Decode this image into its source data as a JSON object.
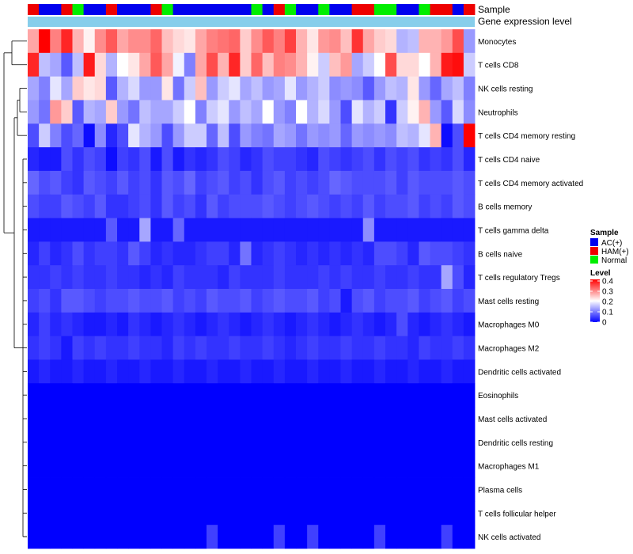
{
  "chart_data": {
    "type": "heatmap",
    "title": "",
    "annotation_labels": {
      "sample": "Sample",
      "expression": "Gene expression level"
    },
    "rows": [
      "Monocytes",
      "T cells CD8",
      "NK cells resting",
      "Neutrophils",
      "T cells CD4 memory resting",
      "T cells CD4 naive",
      "T cells CD4 memory activated",
      "B cells memory",
      "T cells gamma delta",
      "B cells naive",
      "T cells regulatory  Tregs",
      "Mast cells resting",
      "Macrophages M0",
      "Macrophages M2",
      "Dendritic cells activated",
      "Eosinophils",
      "Mast cells activated",
      "Dendritic cells resting",
      "Macrophages M1",
      "Plasma cells",
      "T cells follicular helper",
      "NK cells activated"
    ],
    "sample_groups": [
      "HAM(+)",
      "AC(+)",
      "AC(+)",
      "HAM(+)",
      "Normal",
      "AC(+)",
      "AC(+)",
      "HAM(+)",
      "AC(+)",
      "AC(+)",
      "AC(+)",
      "HAM(+)",
      "Normal",
      "AC(+)",
      "AC(+)",
      "AC(+)",
      "AC(+)",
      "AC(+)",
      "AC(+)",
      "AC(+)",
      "Normal",
      "AC(+)",
      "HAM(+)",
      "Normal",
      "AC(+)",
      "AC(+)",
      "Normal",
      "AC(+)",
      "AC(+)",
      "HAM(+)",
      "HAM(+)",
      "Normal",
      "Normal",
      "AC(+)",
      "AC(+)",
      "Normal",
      "HAM(+)",
      "HAM(+)",
      "AC(+)",
      "HAM(+)"
    ],
    "values": [
      [
        0.27,
        0.4,
        0.3,
        0.37,
        0.26,
        0.21,
        0.29,
        0.33,
        0.27,
        0.29,
        0.29,
        0.32,
        0.25,
        0.23,
        0.22,
        0.27,
        0.3,
        0.31,
        0.32,
        0.24,
        0.29,
        0.33,
        0.3,
        0.35,
        0.26,
        0.22,
        0.28,
        0.29,
        0.25,
        0.36,
        0.27,
        0.24,
        0.23,
        0.14,
        0.15,
        0.26,
        0.26,
        0.28,
        0.34,
        0.12
      ],
      [
        0.37,
        0.15,
        0.13,
        0.07,
        0.15,
        0.38,
        0.23,
        0.14,
        0.2,
        0.22,
        0.27,
        0.33,
        0.27,
        0.19,
        0.1,
        0.27,
        0.34,
        0.26,
        0.37,
        0.24,
        0.32,
        0.25,
        0.3,
        0.29,
        0.26,
        0.21,
        0.16,
        0.25,
        0.28,
        0.13,
        0.16,
        0.2,
        0.34,
        0.23,
        0.23,
        0.2,
        0.26,
        0.38,
        0.39,
        0.16
      ],
      [
        0.13,
        0.1,
        0.18,
        0.13,
        0.24,
        0.22,
        0.23,
        0.07,
        0.14,
        0.17,
        0.12,
        0.12,
        0.22,
        0.09,
        0.16,
        0.25,
        0.12,
        0.16,
        0.18,
        0.13,
        0.15,
        0.12,
        0.13,
        0.18,
        0.12,
        0.14,
        0.16,
        0.11,
        0.12,
        0.11,
        0.07,
        0.12,
        0.15,
        0.14,
        0.22,
        0.12,
        0.08,
        0.13,
        0.15,
        0.1
      ],
      [
        0.12,
        0.09,
        0.28,
        0.24,
        0.07,
        0.14,
        0.13,
        0.24,
        0.12,
        0.09,
        0.15,
        0.13,
        0.13,
        0.16,
        0.2,
        0.1,
        0.16,
        0.18,
        0.12,
        0.15,
        0.13,
        0.2,
        0.12,
        0.1,
        0.2,
        0.14,
        0.17,
        0.12,
        0.06,
        0.18,
        0.14,
        0.16,
        0.04,
        0.16,
        0.21,
        0.26,
        0.12,
        0.07,
        0.17,
        0.11
      ],
      [
        0.06,
        0.16,
        0.1,
        0.06,
        0.08,
        0.01,
        0.11,
        0.03,
        0.06,
        0.18,
        0.14,
        0.12,
        0.06,
        0.12,
        0.16,
        0.16,
        0.08,
        0.15,
        0.06,
        0.12,
        0.1,
        0.09,
        0.13,
        0.12,
        0.09,
        0.12,
        0.11,
        0.12,
        0.08,
        0.12,
        0.11,
        0.12,
        0.11,
        0.15,
        0.14,
        0.18,
        0.26,
        0.01,
        0.06,
        0.4
      ],
      [
        0.03,
        0.02,
        0.02,
        0.06,
        0.04,
        0.06,
        0.05,
        0.01,
        0.05,
        0.04,
        0.06,
        0.02,
        0.06,
        0.02,
        0.04,
        0.03,
        0.04,
        0.06,
        0.05,
        0.03,
        0.04,
        0.06,
        0.05,
        0.05,
        0.04,
        0.03,
        0.06,
        0.05,
        0.04,
        0.05,
        0.06,
        0.04,
        0.06,
        0.05,
        0.06,
        0.04,
        0.05,
        0.04,
        0.06,
        0.03
      ],
      [
        0.08,
        0.06,
        0.07,
        0.05,
        0.04,
        0.07,
        0.06,
        0.05,
        0.07,
        0.05,
        0.06,
        0.04,
        0.07,
        0.06,
        0.08,
        0.05,
        0.06,
        0.07,
        0.05,
        0.06,
        0.04,
        0.06,
        0.07,
        0.05,
        0.06,
        0.05,
        0.06,
        0.08,
        0.07,
        0.06,
        0.06,
        0.06,
        0.07,
        0.05,
        0.07,
        0.06,
        0.06,
        0.06,
        0.07,
        0.06
      ],
      [
        0.06,
        0.05,
        0.05,
        0.07,
        0.06,
        0.05,
        0.07,
        0.04,
        0.04,
        0.05,
        0.06,
        0.04,
        0.07,
        0.05,
        0.06,
        0.04,
        0.07,
        0.05,
        0.06,
        0.06,
        0.06,
        0.07,
        0.06,
        0.05,
        0.06,
        0.07,
        0.06,
        0.05,
        0.06,
        0.05,
        0.07,
        0.05,
        0.06,
        0.06,
        0.07,
        0.05,
        0.06,
        0.05,
        0.07,
        0.06
      ],
      [
        0.02,
        0.02,
        0.02,
        0.02,
        0.02,
        0.02,
        0.02,
        0.07,
        0.02,
        0.02,
        0.13,
        0.02,
        0.02,
        0.08,
        0.02,
        0.02,
        0.02,
        0.02,
        0.02,
        0.02,
        0.02,
        0.02,
        0.02,
        0.02,
        0.02,
        0.02,
        0.02,
        0.02,
        0.02,
        0.02,
        0.11,
        0.02,
        0.02,
        0.02,
        0.02,
        0.02,
        0.02,
        0.02,
        0.02,
        0.02
      ],
      [
        0.03,
        0.05,
        0.03,
        0.04,
        0.06,
        0.04,
        0.05,
        0.05,
        0.04,
        0.07,
        0.05,
        0.03,
        0.04,
        0.03,
        0.03,
        0.04,
        0.05,
        0.05,
        0.03,
        0.09,
        0.03,
        0.04,
        0.05,
        0.04,
        0.03,
        0.04,
        0.03,
        0.04,
        0.03,
        0.04,
        0.03,
        0.06,
        0.06,
        0.05,
        0.03,
        0.07,
        0.06,
        0.06,
        0.05,
        0.04
      ],
      [
        0.04,
        0.04,
        0.05,
        0.04,
        0.05,
        0.04,
        0.04,
        0.05,
        0.04,
        0.04,
        0.03,
        0.04,
        0.03,
        0.05,
        0.04,
        0.04,
        0.04,
        0.03,
        0.05,
        0.04,
        0.04,
        0.04,
        0.05,
        0.04,
        0.04,
        0.04,
        0.05,
        0.04,
        0.05,
        0.04,
        0.04,
        0.05,
        0.04,
        0.04,
        0.05,
        0.04,
        0.04,
        0.13,
        0.06,
        0.03
      ],
      [
        0.05,
        0.06,
        0.04,
        0.07,
        0.07,
        0.06,
        0.05,
        0.06,
        0.06,
        0.07,
        0.06,
        0.06,
        0.07,
        0.05,
        0.06,
        0.05,
        0.07,
        0.06,
        0.06,
        0.07,
        0.05,
        0.06,
        0.07,
        0.06,
        0.06,
        0.07,
        0.05,
        0.06,
        0.02,
        0.06,
        0.07,
        0.05,
        0.06,
        0.06,
        0.07,
        0.05,
        0.06,
        0.07,
        0.05,
        0.06
      ],
      [
        0.03,
        0.05,
        0.03,
        0.04,
        0.03,
        0.02,
        0.02,
        0.03,
        0.02,
        0.04,
        0.03,
        0.02,
        0.03,
        0.04,
        0.03,
        0.02,
        0.03,
        0.04,
        0.03,
        0.02,
        0.03,
        0.04,
        0.03,
        0.02,
        0.03,
        0.04,
        0.03,
        0.02,
        0.03,
        0.04,
        0.03,
        0.02,
        0.03,
        0.06,
        0.03,
        0.02,
        0.03,
        0.04,
        0.03,
        0.02
      ],
      [
        0.04,
        0.05,
        0.04,
        0.02,
        0.05,
        0.04,
        0.05,
        0.04,
        0.04,
        0.05,
        0.04,
        0.04,
        0.03,
        0.05,
        0.04,
        0.05,
        0.04,
        0.04,
        0.05,
        0.04,
        0.04,
        0.05,
        0.04,
        0.03,
        0.04,
        0.05,
        0.04,
        0.04,
        0.05,
        0.04,
        0.04,
        0.05,
        0.04,
        0.04,
        0.03,
        0.05,
        0.04,
        0.04,
        0.05,
        0.04
      ],
      [
        0.02,
        0.03,
        0.02,
        0.02,
        0.03,
        0.02,
        0.02,
        0.03,
        0.02,
        0.02,
        0.03,
        0.02,
        0.02,
        0.03,
        0.02,
        0.02,
        0.03,
        0.02,
        0.02,
        0.03,
        0.02,
        0.02,
        0.03,
        0.02,
        0.02,
        0.03,
        0.02,
        0.02,
        0.03,
        0.02,
        0.02,
        0.03,
        0.02,
        0.02,
        0.03,
        0.02,
        0.02,
        0.03,
        0.02,
        0.02
      ],
      [
        0,
        0,
        0,
        0,
        0,
        0,
        0,
        0,
        0,
        0,
        0,
        0,
        0,
        0,
        0,
        0,
        0,
        0,
        0,
        0,
        0,
        0,
        0,
        0,
        0,
        0,
        0,
        0,
        0,
        0,
        0,
        0,
        0,
        0,
        0,
        0,
        0,
        0,
        0,
        0
      ],
      [
        0,
        0,
        0,
        0,
        0,
        0,
        0,
        0,
        0,
        0,
        0,
        0,
        0,
        0,
        0,
        0,
        0,
        0,
        0,
        0,
        0,
        0,
        0,
        0,
        0,
        0,
        0,
        0,
        0,
        0,
        0,
        0,
        0,
        0,
        0,
        0,
        0,
        0,
        0,
        0
      ],
      [
        0,
        0,
        0,
        0,
        0,
        0,
        0,
        0,
        0,
        0,
        0,
        0,
        0,
        0,
        0,
        0,
        0,
        0,
        0,
        0,
        0,
        0,
        0,
        0,
        0,
        0,
        0,
        0,
        0,
        0,
        0,
        0,
        0,
        0,
        0,
        0,
        0,
        0,
        0,
        0
      ],
      [
        0,
        0,
        0,
        0,
        0,
        0,
        0,
        0,
        0,
        0,
        0,
        0,
        0,
        0,
        0,
        0,
        0,
        0,
        0,
        0,
        0,
        0,
        0,
        0,
        0,
        0,
        0,
        0,
        0,
        0,
        0,
        0,
        0,
        0,
        0,
        0,
        0,
        0,
        0,
        0
      ],
      [
        0,
        0,
        0,
        0,
        0,
        0,
        0,
        0,
        0,
        0,
        0,
        0,
        0,
        0,
        0,
        0,
        0,
        0,
        0,
        0,
        0,
        0,
        0,
        0,
        0,
        0,
        0,
        0,
        0,
        0,
        0,
        0,
        0,
        0,
        0,
        0,
        0,
        0,
        0,
        0
      ],
      [
        0,
        0,
        0,
        0,
        0,
        0,
        0,
        0,
        0,
        0,
        0,
        0,
        0,
        0,
        0,
        0,
        0,
        0,
        0,
        0,
        0,
        0,
        0,
        0,
        0,
        0,
        0,
        0,
        0,
        0,
        0,
        0,
        0,
        0,
        0,
        0,
        0,
        0,
        0,
        0
      ],
      [
        0,
        0,
        0,
        0,
        0,
        0,
        0,
        0,
        0,
        0,
        0,
        0,
        0,
        0,
        0,
        0,
        0.05,
        0,
        0,
        0,
        0,
        0,
        0.05,
        0,
        0,
        0.05,
        0,
        0,
        0,
        0,
        0,
        0.05,
        0,
        0,
        0,
        0,
        0,
        0.05,
        0,
        0
      ]
    ],
    "color_scale": {
      "min": 0,
      "max": 0.4,
      "colors": [
        "#0000ff",
        "#ffffff",
        "#ff0000"
      ]
    },
    "legend": {
      "sample_title": "Sample",
      "groups": [
        {
          "label": "AC(+)",
          "color": "#0000ee"
        },
        {
          "label": "HAM(+)",
          "color": "#ee0000"
        },
        {
          "label": "Normal",
          "color": "#00ee00"
        }
      ],
      "level_title": "Level",
      "level_ticks": [
        "0.4",
        "0.3",
        "0.2",
        "0.1",
        "0"
      ],
      "placement": "right"
    },
    "expression_bar_color": "#87ceeb",
    "dendrogram": "left"
  }
}
